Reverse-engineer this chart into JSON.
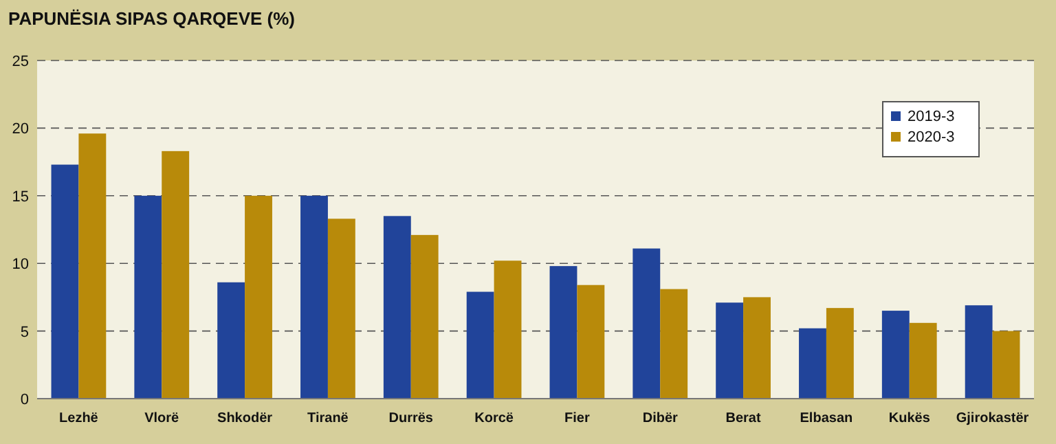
{
  "chart_data": {
    "type": "bar",
    "title": "PAPUNËSIA SIPAS QARQEVE (%)",
    "categories": [
      "Lezhë",
      "Vlorë",
      "Shkodër",
      "Tiranë",
      "Durrës",
      "Korcë",
      "Fier",
      "Dibër",
      "Berat",
      "Elbasan",
      "Kukës",
      "Gjirokastër"
    ],
    "series": [
      {
        "name": "2019-3",
        "color": "#21449a",
        "values": [
          17.3,
          15,
          8.6,
          15,
          13.5,
          7.9,
          9.8,
          11.1,
          7.1,
          5.2,
          6.5,
          6.9
        ]
      },
      {
        "name": "2020-3",
        "color": "#b88a0a",
        "values": [
          19.6,
          18.3,
          15,
          13.3,
          12.1,
          10.2,
          8.4,
          8.1,
          7.5,
          6.7,
          5.6,
          5.0
        ]
      }
    ],
    "ylim": [
      0,
      25
    ],
    "yticks": [
      0,
      5,
      10,
      15,
      20,
      25
    ],
    "grid": "y",
    "legend": "top right"
  }
}
